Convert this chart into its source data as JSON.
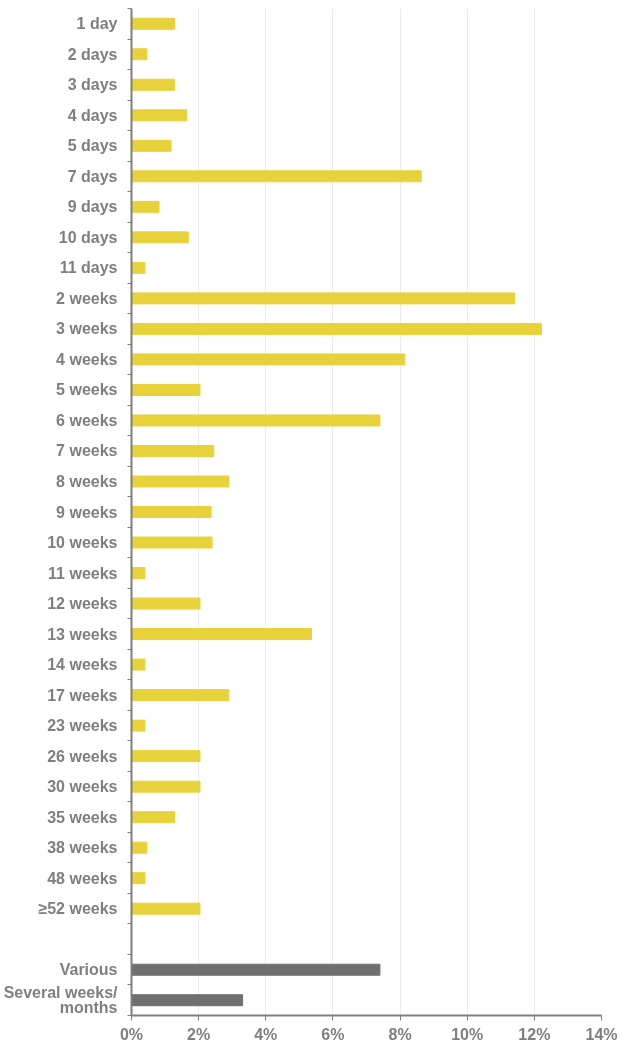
{
  "chart_data": {
    "type": "bar",
    "orientation": "horizontal",
    "categories": [
      "1 day",
      "2 days",
      "3 days",
      "4 days",
      "5 days",
      "7 days",
      "9 days",
      "10 days",
      "11 days",
      "2 weeks",
      "3 weeks",
      "4 weeks",
      "5 weeks",
      "6 weeks",
      "7 weeks",
      "8 weeks",
      "9 weeks",
      "10 weeks",
      "11 weeks",
      "12 weeks",
      "13 weeks",
      "14 weeks",
      "17 weeks",
      "23 weeks",
      "26 weeks",
      "30 weeks",
      "35 weeks",
      "38 weeks",
      "48 weeks",
      "≥52 weeks",
      null,
      "Various",
      "Several weeks/\nmonths"
    ],
    "values": [
      1.28,
      0.46,
      1.28,
      1.64,
      1.18,
      8.63,
      0.82,
      1.69,
      0.4,
      11.41,
      12.21,
      8.14,
      2.04,
      7.4,
      2.45,
      2.9,
      2.37,
      2.4,
      0.4,
      2.04,
      5.36,
      0.4,
      2.9,
      0.4,
      2.04,
      2.04,
      1.28,
      0.46,
      0.4,
      2.04,
      null,
      7.4,
      3.31
    ],
    "colors": [
      "#e8d23c",
      "#e8d23c",
      "#e8d23c",
      "#e8d23c",
      "#e8d23c",
      "#e8d23c",
      "#e8d23c",
      "#e8d23c",
      "#e8d23c",
      "#e8d23c",
      "#e8d23c",
      "#e8d23c",
      "#e8d23c",
      "#e8d23c",
      "#e8d23c",
      "#e8d23c",
      "#e8d23c",
      "#e8d23c",
      "#e8d23c",
      "#e8d23c",
      "#e8d23c",
      "#e8d23c",
      "#e8d23c",
      "#e8d23c",
      "#e8d23c",
      "#e8d23c",
      "#e8d23c",
      "#e8d23c",
      "#e8d23c",
      "#e8d23c",
      "#e8d23c",
      "#6f6f6f",
      "#6f6f6f"
    ],
    "xlim": [
      0,
      14
    ],
    "xticks": [
      {
        "value": 0,
        "label": "0%"
      },
      {
        "value": 2,
        "label": "2%"
      },
      {
        "value": 4,
        "label": "4%"
      },
      {
        "value": 6,
        "label": "6%"
      },
      {
        "value": 8,
        "label": "8%"
      },
      {
        "value": 10,
        "label": "10%"
      },
      {
        "value": 12,
        "label": "12%"
      },
      {
        "value": 14,
        "label": "14%"
      }
    ],
    "grid": "x"
  }
}
